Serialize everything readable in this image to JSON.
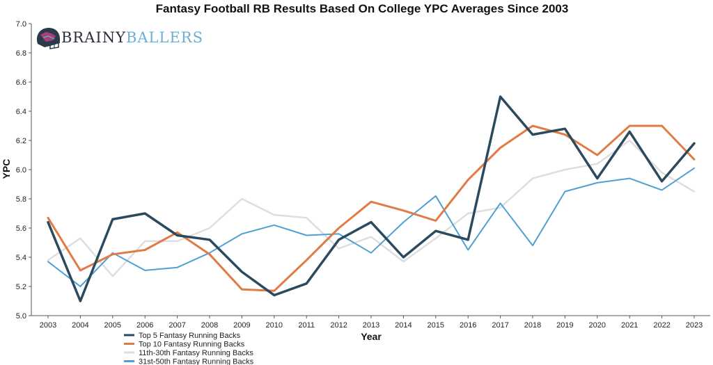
{
  "logo": {
    "part1": "BRAINY",
    "part2": "BALLERS"
  },
  "chart_data": {
    "type": "line",
    "title": "Fantasy Football RB Results Based On College YPC Averages Since 2003",
    "xlabel": "Year",
    "ylabel": "YPC",
    "ylim": [
      5.0,
      7.0
    ],
    "yticks": [
      "5.0",
      "5.2",
      "5.4",
      "5.6",
      "5.8",
      "6.0",
      "6.2",
      "6.4",
      "6.6",
      "6.8",
      "7.0"
    ],
    "categories": [
      "2003",
      "2004",
      "2005",
      "2006",
      "2007",
      "2008",
      "2009",
      "2010",
      "2011",
      "2012",
      "2013",
      "2014",
      "2015",
      "2016",
      "2017",
      "2018",
      "2019",
      "2020",
      "2021",
      "2022",
      "2023"
    ],
    "grid": false,
    "legend_position": "bottom-left",
    "series": [
      {
        "name": "Top 5 Fantasy Running Backs",
        "color": "#2c4a5e",
        "width": 3.5,
        "values": [
          5.64,
          5.1,
          5.66,
          5.7,
          5.55,
          5.52,
          5.3,
          5.14,
          5.22,
          5.52,
          5.64,
          5.4,
          5.58,
          5.52,
          6.5,
          6.24,
          6.28,
          5.94,
          6.26,
          5.92,
          6.18
        ]
      },
      {
        "name": "Top 10 Fantasy Running Backs",
        "color": "#e07b45",
        "width": 3,
        "values": [
          5.67,
          5.31,
          5.42,
          5.45,
          5.57,
          5.42,
          5.18,
          5.17,
          5.38,
          5.6,
          5.78,
          5.72,
          5.65,
          5.93,
          6.15,
          6.3,
          6.24,
          6.1,
          6.3,
          6.3,
          6.07
        ]
      },
      {
        "name": "11th-30th Fantasy Running Backs",
        "color": "#dedede",
        "width": 2.5,
        "values": [
          5.38,
          5.53,
          5.27,
          5.51,
          5.51,
          5.6,
          5.8,
          5.69,
          5.67,
          5.46,
          5.54,
          5.37,
          5.53,
          5.7,
          5.74,
          5.94,
          6.0,
          6.04,
          6.2,
          5.98,
          5.85
        ]
      },
      {
        "name": "31st-50th Fantasy Running Backs",
        "color": "#4fa0d2",
        "width": 2,
        "values": [
          5.37,
          5.2,
          5.43,
          5.31,
          5.33,
          5.43,
          5.56,
          5.62,
          5.55,
          5.56,
          5.43,
          5.64,
          5.82,
          5.45,
          5.77,
          5.48,
          5.85,
          5.91,
          5.94,
          5.86,
          6.01
        ]
      }
    ]
  }
}
